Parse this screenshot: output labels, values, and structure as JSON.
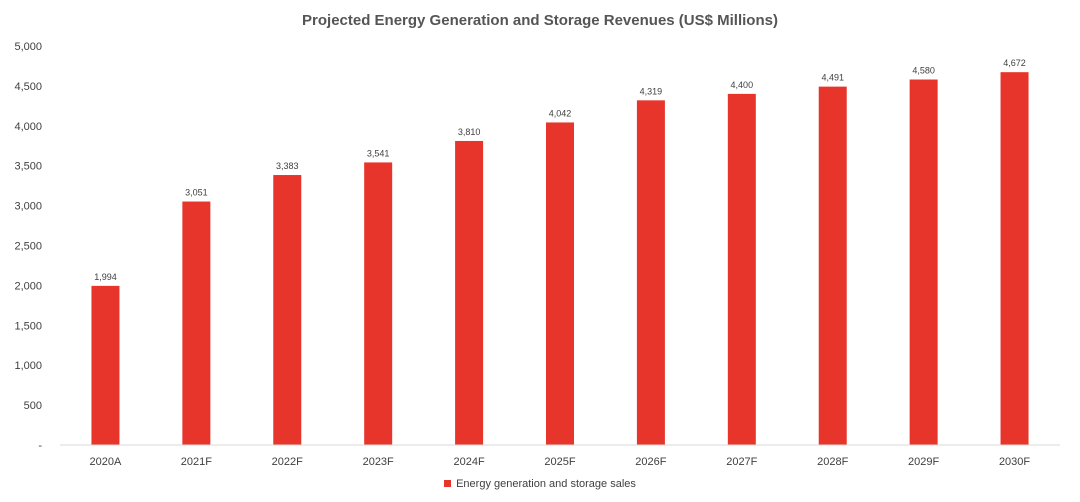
{
  "chart_data": {
    "type": "bar",
    "title": "Projected Energy Generation and Storage Revenues (US$ Millions)",
    "xlabel": "",
    "ylabel": "",
    "ylim": [
      0,
      5000
    ],
    "yticks": [
      0,
      500,
      1000,
      1500,
      2000,
      2500,
      3000,
      3500,
      4000,
      4500,
      5000
    ],
    "ytick_labels": [
      "-",
      "500",
      "1,000",
      "1,500",
      "2,000",
      "2,500",
      "3,000",
      "3,500",
      "4,000",
      "4,500",
      "5,000"
    ],
    "categories": [
      "2020A",
      "2021F",
      "2022F",
      "2023F",
      "2024F",
      "2025F",
      "2026F",
      "2027F",
      "2028F",
      "2029F",
      "2030F"
    ],
    "series": [
      {
        "name": "Energy generation and storage sales",
        "color": "#e8352b",
        "values": [
          1994,
          3051,
          3383,
          3541,
          3810,
          4042,
          4319,
          4400,
          4491,
          4580,
          4672
        ],
        "data_labels": [
          "1,994",
          "3,051",
          "3,383",
          "3,541",
          "3,810",
          "4,042",
          "4,319",
          "4,400",
          "4,491",
          "4,580",
          "4,672"
        ]
      }
    ],
    "grid": false,
    "legend_position": "bottom-center"
  }
}
